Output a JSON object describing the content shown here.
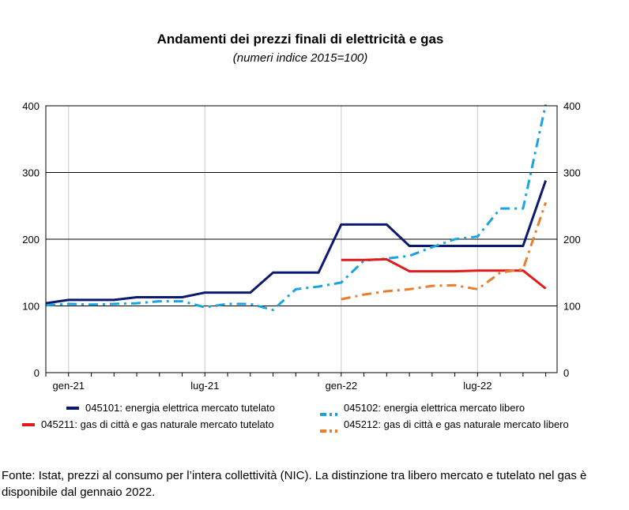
{
  "chart_data": {
    "type": "line",
    "title": "Andamenti dei prezzi finali di elettricità e gas",
    "subtitle": "(numeri indice 2015=100)",
    "ylim": [
      0,
      400
    ],
    "yticks": [
      "0",
      "100",
      "200",
      "300",
      "400"
    ],
    "xlim": [
      -1,
      21.5
    ],
    "xticks": [
      {
        "x": 0,
        "label": "gen-21"
      },
      {
        "x": 6,
        "label": "lug-21"
      },
      {
        "x": 12,
        "label": "gen-22"
      },
      {
        "x": 18,
        "label": "lug-22"
      }
    ],
    "grid": "horizontal major lines, vertical lines at labeled months",
    "legend_position": "bottom",
    "series": [
      {
        "name": "045101: energia elettrica mercato tutelato",
        "color": "#0b1a6e",
        "style": "solid",
        "x": [
          -1,
          0,
          1,
          2,
          3,
          4,
          5,
          6,
          7,
          8,
          9,
          10,
          11,
          12,
          13,
          14,
          15,
          16,
          17,
          18,
          19,
          20,
          21
        ],
        "y": [
          104,
          109,
          109,
          109,
          113,
          113,
          113,
          120,
          120,
          120,
          150,
          150,
          150,
          222,
          222,
          222,
          190,
          190,
          190,
          190,
          190,
          190,
          288
        ]
      },
      {
        "name": "045102: energia elettrica mercato libero",
        "color": "#1aa3e0",
        "style": "dashdot",
        "x": [
          -1,
          0,
          1,
          2,
          3,
          4,
          5,
          6,
          7,
          8,
          9,
          10,
          11,
          12,
          13,
          14,
          15,
          16,
          17,
          18,
          19,
          20,
          21
        ],
        "y": [
          101,
          103,
          102,
          103,
          104,
          107,
          107,
          98,
          103,
          103,
          94,
          125,
          129,
          135,
          168,
          171,
          175,
          188,
          200,
          204,
          246,
          246,
          402
        ]
      },
      {
        "name": "045211: gas di città e gas naturale mercato tutelato",
        "color": "#e11b1b",
        "style": "solid",
        "x": [
          12,
          13,
          14,
          15,
          16,
          17,
          18,
          19,
          20,
          21
        ],
        "y": [
          169,
          169,
          170,
          152,
          152,
          152,
          153,
          153,
          153,
          126
        ]
      },
      {
        "name": "045212: gas di città e gas naturale mercato libero",
        "color": "#e87e2e",
        "style": "dashdot",
        "x": [
          12,
          13,
          14,
          15,
          16,
          17,
          18,
          19,
          20,
          21
        ],
        "y": [
          110,
          117,
          122,
          125,
          130,
          131,
          125,
          150,
          155,
          255
        ]
      }
    ]
  },
  "source_note": "Fonte: Istat, prezzi al consumo per l’intera collettività (NIC). La distinzione tra libero mercato e tutelato nel gas è disponibile dal gennaio 2022."
}
